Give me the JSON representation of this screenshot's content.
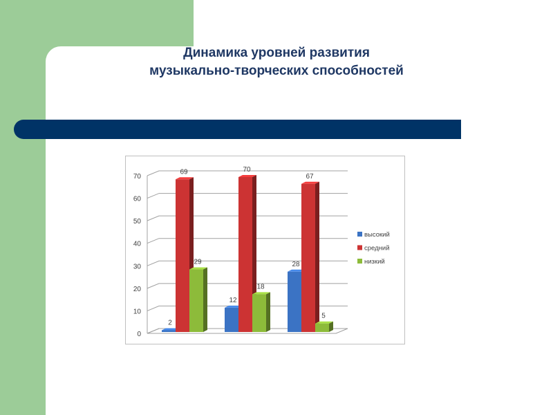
{
  "slide": {
    "title_line1": "Динамика уровней развития",
    "title_line2": "музыкально-творческих способностей"
  },
  "colors": {
    "sidebar": "#9ccc98",
    "band": "#003366",
    "title": "#1f3864"
  },
  "chart_data": {
    "type": "bar",
    "style": "3d-clustered-column",
    "categories": [
      "",
      "",
      ""
    ],
    "series": [
      {
        "name": "высокий",
        "values": [
          2,
          12,
          28
        ],
        "color": "#3b73c4"
      },
      {
        "name": "средний",
        "values": [
          69,
          70,
          67
        ],
        "color": "#cc3333"
      },
      {
        "name": "низкий",
        "values": [
          29,
          18,
          5
        ],
        "color": "#8dbb3a"
      }
    ],
    "ylim": [
      0,
      70
    ],
    "yticks": [
      "0",
      "10",
      "20",
      "30",
      "40",
      "50",
      "60",
      "70"
    ],
    "grid": true,
    "legend": "right",
    "data_labels": true
  }
}
